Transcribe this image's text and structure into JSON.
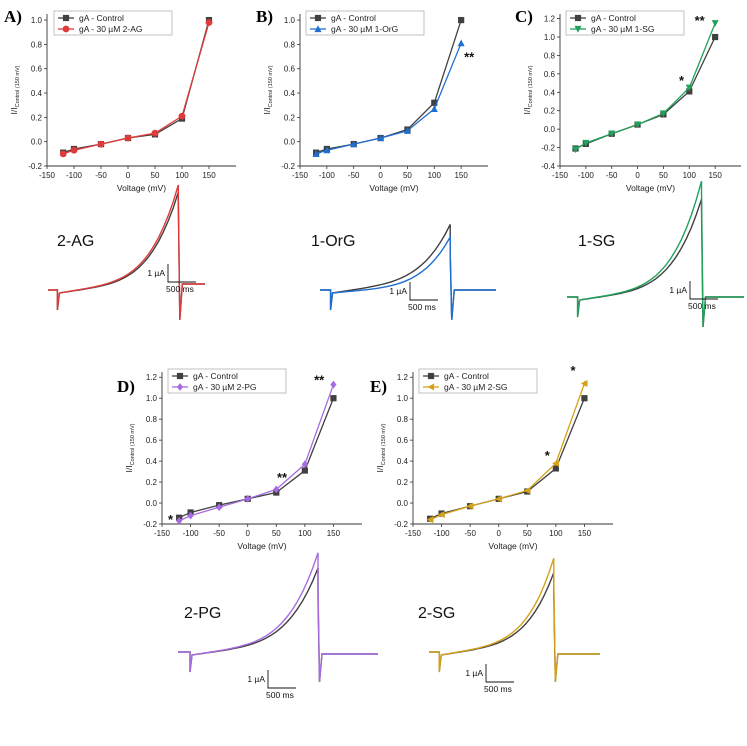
{
  "figure_title": "",
  "colors": {
    "control": "#404040",
    "pA": "#e03a3a",
    "pB": "#1f6fd1",
    "pC": "#21a15a",
    "pD": "#a66be0",
    "pE": "#d4a21a"
  },
  "chart_data": [
    {
      "id": "A",
      "type": "line",
      "panel_label": "A)",
      "xlabel": "Voltage (mV)",
      "ylabel_main": "I/I",
      "ylabel_sub": "Control (150 mV)",
      "xlim": [
        -150,
        200
      ],
      "ylim": [
        -0.2,
        1.05
      ],
      "xticks": [
        -150,
        -100,
        -50,
        0,
        50,
        100,
        150
      ],
      "yticks": [
        -0.2,
        0.0,
        0.2,
        0.4,
        0.6,
        0.8,
        1.0
      ],
      "x": [
        -120,
        -100,
        -50,
        0,
        50,
        100,
        150
      ],
      "series": [
        {
          "name": "gA - Control",
          "marker": "square",
          "values": [
            -0.09,
            -0.06,
            -0.02,
            0.03,
            0.06,
            0.19,
            1.0
          ]
        },
        {
          "name": "gA - 30 µM 2-AG",
          "marker": "circle",
          "values": [
            -0.1,
            -0.07,
            -0.02,
            0.03,
            0.07,
            0.21,
            0.98
          ]
        }
      ],
      "annotations": [],
      "compound": "2-AG",
      "scale_current": "1 µA",
      "scale_time": "500 ms"
    },
    {
      "id": "B",
      "type": "line",
      "panel_label": "B)",
      "xlabel": "Voltage (mV)",
      "ylabel_main": "I/I",
      "ylabel_sub": "Control (150 mV)",
      "xlim": [
        -150,
        200
      ],
      "ylim": [
        -0.2,
        1.05
      ],
      "xticks": [
        -150,
        -100,
        -50,
        0,
        50,
        100,
        150
      ],
      "yticks": [
        -0.2,
        0.0,
        0.2,
        0.4,
        0.6,
        0.8,
        1.0
      ],
      "x": [
        -120,
        -100,
        -50,
        0,
        50,
        100,
        150
      ],
      "series": [
        {
          "name": "gA - Control",
          "marker": "square",
          "values": [
            -0.09,
            -0.06,
            -0.02,
            0.03,
            0.1,
            0.32,
            1.0
          ]
        },
        {
          "name": "gA - 30 µM 1-OrG",
          "marker": "triangle",
          "values": [
            -0.1,
            -0.07,
            -0.02,
            0.03,
            0.09,
            0.27,
            0.81
          ]
        }
      ],
      "annotations": [
        {
          "text": "**",
          "x": 165,
          "y": 0.66
        }
      ],
      "compound": "1-OrG",
      "scale_current": "1 µA",
      "scale_time": "500 ms"
    },
    {
      "id": "C",
      "type": "line",
      "panel_label": "C)",
      "xlabel": "Voltage (mV)",
      "ylabel_main": "I/I",
      "ylabel_sub": "Control (150 mV)",
      "xlim": [
        -150,
        200
      ],
      "ylim": [
        -0.4,
        1.25
      ],
      "xticks": [
        -150,
        -100,
        -50,
        0,
        50,
        100,
        150
      ],
      "yticks": [
        -0.4,
        -0.2,
        0.0,
        0.2,
        0.4,
        0.6,
        0.8,
        1.0,
        1.2
      ],
      "x": [
        -120,
        -100,
        -50,
        0,
        50,
        100,
        150
      ],
      "series": [
        {
          "name": "gA - Control",
          "marker": "square",
          "values": [
            -0.21,
            -0.16,
            -0.05,
            0.05,
            0.16,
            0.41,
            1.0
          ]
        },
        {
          "name": "gA - 30 µM 1-SG",
          "marker": "triangle-down",
          "values": [
            -0.22,
            -0.15,
            -0.05,
            0.05,
            0.17,
            0.45,
            1.15
          ]
        }
      ],
      "annotations": [
        {
          "text": "*",
          "x": 85,
          "y": 0.48
        },
        {
          "text": "**",
          "x": 120,
          "y": 1.13
        }
      ],
      "compound": "1-SG",
      "scale_current": "1 µA",
      "scale_time": "500 ms"
    },
    {
      "id": "D",
      "type": "line",
      "panel_label": "D)",
      "xlabel": "Voltage (mV)",
      "ylabel_main": "I/I",
      "ylabel_sub": "Control (150 mV)",
      "xlim": [
        -150,
        200
      ],
      "ylim": [
        -0.2,
        1.25
      ],
      "xticks": [
        -150,
        -100,
        -50,
        0,
        50,
        100,
        150
      ],
      "yticks": [
        -0.2,
        0.0,
        0.2,
        0.4,
        0.6,
        0.8,
        1.0,
        1.2
      ],
      "x": [
        -120,
        -100,
        -50,
        0,
        50,
        100,
        150
      ],
      "series": [
        {
          "name": "gA - Control",
          "marker": "square",
          "values": [
            -0.14,
            -0.09,
            -0.02,
            0.04,
            0.1,
            0.31,
            1.0
          ]
        },
        {
          "name": "gA - 30 µM 2-PG",
          "marker": "diamond",
          "values": [
            -0.17,
            -0.12,
            -0.04,
            0.04,
            0.13,
            0.37,
            1.13
          ]
        }
      ],
      "annotations": [
        {
          "text": "*",
          "x": -135,
          "y": -0.2
        },
        {
          "text": "**",
          "x": 60,
          "y": 0.2
        },
        {
          "text": "**",
          "x": 125,
          "y": 1.13
        }
      ],
      "compound": "2-PG",
      "scale_current": "1 µA",
      "scale_time": "500 ms"
    },
    {
      "id": "E",
      "type": "line",
      "panel_label": "E)",
      "xlabel": "Voltage (mV)",
      "ylabel_main": "I/I",
      "ylabel_sub": "Control (150 mV)",
      "xlim": [
        -150,
        200
      ],
      "ylim": [
        -0.2,
        1.25
      ],
      "xticks": [
        -150,
        -100,
        -50,
        0,
        50,
        100,
        150
      ],
      "yticks": [
        -0.2,
        0.0,
        0.2,
        0.4,
        0.6,
        0.8,
        1.0,
        1.2
      ],
      "x": [
        -120,
        -100,
        -50,
        0,
        50,
        100,
        150
      ],
      "series": [
        {
          "name": "gA - Control",
          "marker": "square",
          "values": [
            -0.15,
            -0.1,
            -0.03,
            0.04,
            0.11,
            0.33,
            1.0
          ]
        },
        {
          "name": "gA - 30 µM 2-SG",
          "marker": "triangle-left",
          "values": [
            -0.16,
            -0.11,
            -0.03,
            0.04,
            0.12,
            0.38,
            1.14
          ]
        }
      ],
      "annotations": [
        {
          "text": "*",
          "x": 85,
          "y": 0.41
        },
        {
          "text": "*",
          "x": 130,
          "y": 1.22
        }
      ],
      "compound": "2-SG",
      "scale_current": "1 µA",
      "scale_time": "500 ms"
    }
  ]
}
